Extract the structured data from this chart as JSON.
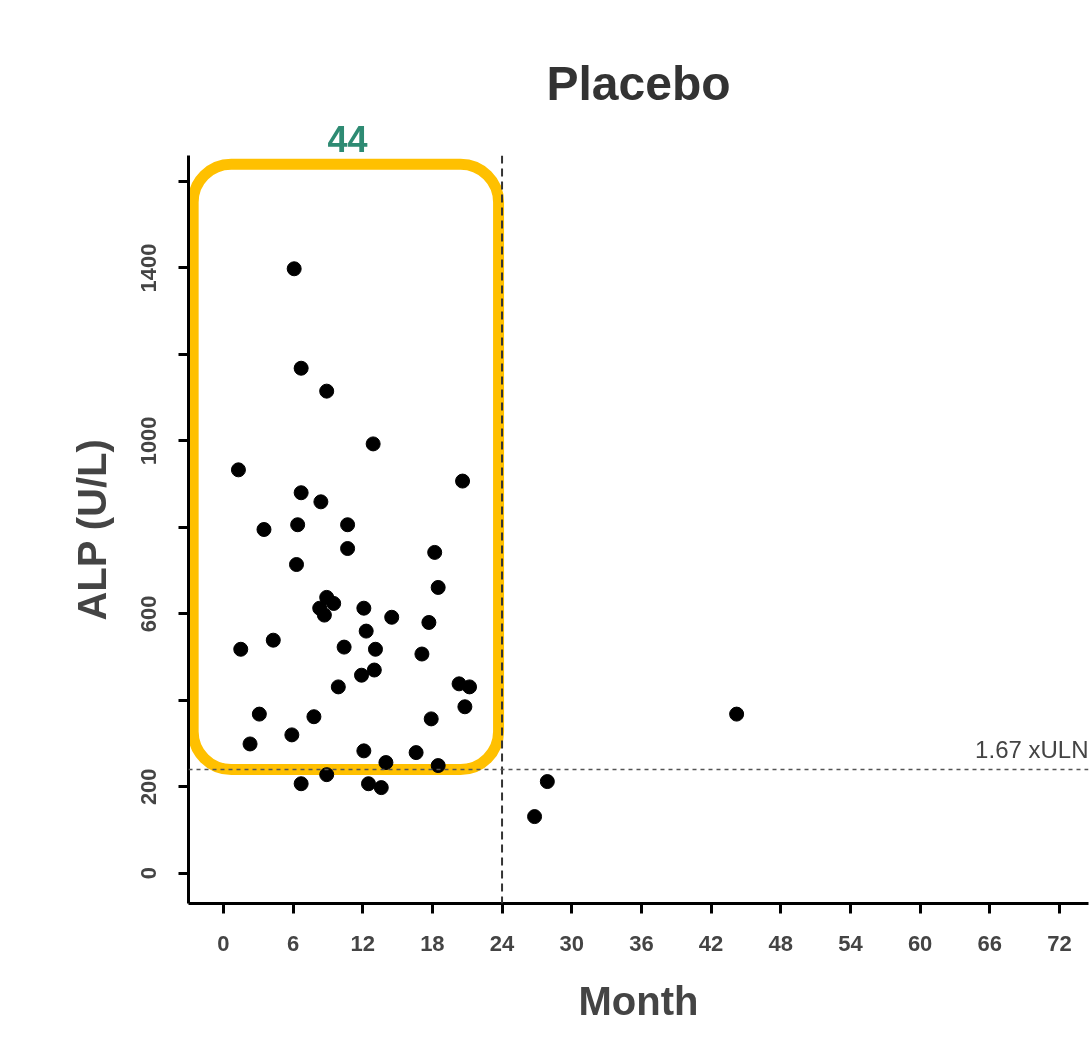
{
  "chart_data": {
    "type": "scatter",
    "title": "Placebo",
    "xlabel": "Month",
    "ylabel": "ALP (U/L)",
    "x": [
      6.1,
      6.7,
      8.9,
      12.9,
      1.3,
      20.6,
      6.7,
      8.4,
      6.4,
      10.7,
      3.5,
      10.7,
      18.2,
      6.3,
      18.5,
      8.9,
      9.5,
      8.3,
      8.7,
      12.1,
      14.5,
      17.7,
      12.3,
      4.3,
      1.5,
      10.4,
      13.1,
      17.1,
      13.0,
      11.9,
      9.9,
      20.3,
      21.2,
      20.8,
      3.1,
      7.8,
      17.9,
      5.9,
      2.3,
      12.1,
      16.6,
      14.0,
      18.5,
      8.9,
      6.7,
      12.5,
      13.6,
      44.2,
      27.9,
      26.8
    ],
    "values": [
      1398,
      1168,
      1115,
      993,
      933,
      907,
      880,
      859,
      806,
      806,
      795,
      751,
      742,
      714,
      661,
      638,
      624,
      613,
      597,
      613,
      592,
      580,
      560,
      539,
      518,
      523,
      518,
      507,
      470,
      458,
      431,
      438,
      431,
      385,
      368,
      362,
      357,
      320,
      299,
      283,
      279,
      256,
      249,
      228,
      207,
      207,
      198,
      368,
      212,
      131
    ],
    "color": "#000000",
    "marker": "circle",
    "grid": false,
    "xlim": [
      -3,
      74.5
    ],
    "xticks": [
      0,
      6,
      12,
      18,
      24,
      30,
      36,
      42,
      48,
      54,
      60,
      66,
      72
    ],
    "ylim": [
      -70,
      1660
    ],
    "yticks": [
      0,
      200,
      {
        "value": 400,
        "label": null
      },
      600,
      {
        "value": 800,
        "label": null
      },
      1000,
      {
        "value": 1200,
        "label": null
      },
      1400,
      {
        "value": 1600,
        "label": null
      }
    ],
    "ref_lines": [
      {
        "axis": "x",
        "value": 24,
        "label": null,
        "color": "#333333",
        "line_style": "dashed"
      },
      {
        "axis": "y",
        "value": 240,
        "label": "1.67 xULN",
        "color": "#555555",
        "line_style": "dotted"
      }
    ],
    "annotations": [
      "44"
    ]
  }
}
